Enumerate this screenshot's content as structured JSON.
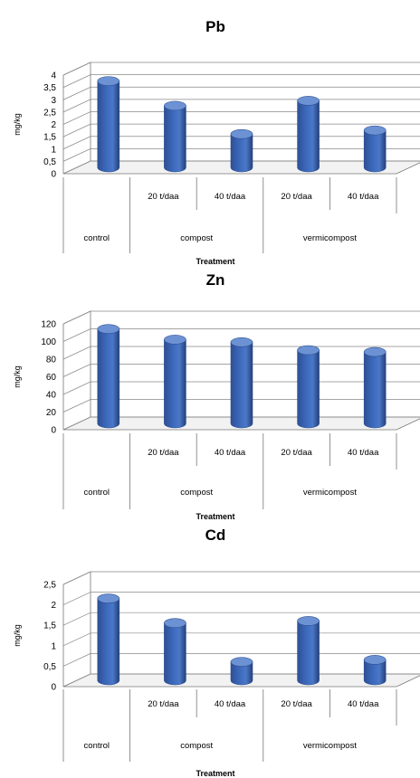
{
  "chart_data": [
    {
      "type": "bar",
      "title": "Pb",
      "xlabel": "Treatment",
      "ylabel": "mg/kg",
      "ylim": [
        0,
        4
      ],
      "yticks": [
        "0",
        "0,5",
        "1",
        "1,5",
        "2",
        "2,5",
        "3",
        "3,5",
        "4"
      ],
      "categories": [
        "control",
        "compost 20 t/daa",
        "compost 40 t/daa",
        "vermicompost 20 t/daa",
        "vermicompost 40 t/daa"
      ],
      "group_labels": [
        "control",
        "compost",
        "vermicompost"
      ],
      "sub_labels": [
        "",
        "20 t/daa",
        "40 t/daa",
        "20 t/daa",
        "40 t/daa"
      ],
      "values": [
        3.5,
        2.5,
        1.35,
        2.7,
        1.5
      ],
      "bar_color": "#3a66b8",
      "grid": true,
      "three_d": true
    },
    {
      "type": "bar",
      "title": "Zn",
      "xlabel": "Treatment",
      "ylabel": "mg/kg",
      "ylim": [
        0,
        120
      ],
      "yticks": [
        "0",
        "20",
        "40",
        "60",
        "80",
        "100",
        "120"
      ],
      "categories": [
        "control",
        "compost 20 t/daa",
        "compost 40 t/daa",
        "vermicompost 20 t/daa",
        "vermicompost 40 t/daa"
      ],
      "group_labels": [
        "control",
        "compost",
        "vermicompost"
      ],
      "sub_labels": [
        "",
        "20 t/daa",
        "40 t/daa",
        "20 t/daa",
        "40 t/daa"
      ],
      "values": [
        107,
        95,
        92,
        83,
        81
      ],
      "bar_color": "#3a66b8",
      "grid": true,
      "three_d": true
    },
    {
      "type": "bar",
      "title": "Cd",
      "xlabel": "Treatment",
      "ylabel": "mg/kg",
      "ylim": [
        0,
        2.5
      ],
      "yticks": [
        "0",
        "0,5",
        "1",
        "1,5",
        "2",
        "2,5"
      ],
      "categories": [
        "control",
        "compost 20 t/daa",
        "compost 40 t/daa",
        "vermicompost 20 t/daa",
        "vermicompost 40 t/daa"
      ],
      "group_labels": [
        "control",
        "compost",
        "vermicompost"
      ],
      "sub_labels": [
        "",
        "20 t/daa",
        "40 t/daa",
        "20 t/daa",
        "40 t/daa"
      ],
      "values": [
        2.0,
        1.4,
        0.45,
        1.45,
        0.5
      ],
      "bar_color": "#3a66b8",
      "grid": true,
      "three_d": true
    }
  ]
}
